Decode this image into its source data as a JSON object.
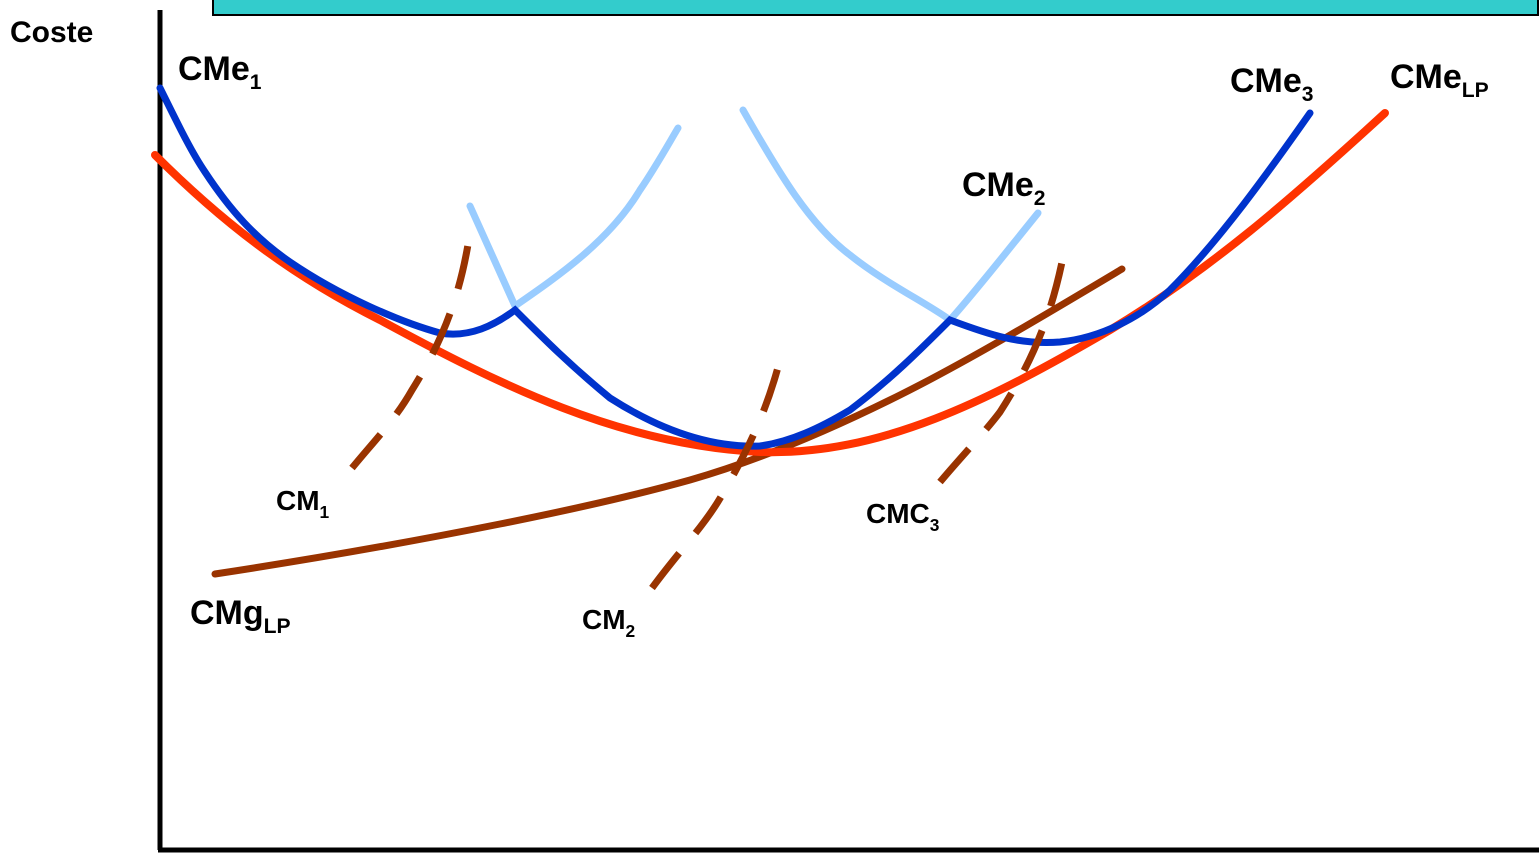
{
  "axis_label": "Coste",
  "colors": {
    "banner": "#33cccc",
    "cme1": "#0033cc",
    "cme2": "#99ccff",
    "cme3": "#0033cc",
    "cmelp": "#ff3300",
    "cmglp": "#993300",
    "cm_dashed": "#993300"
  },
  "labels": {
    "cme1": {
      "main": "CMe",
      "sub": "1"
    },
    "cme2": {
      "main": "CMe",
      "sub": "2"
    },
    "cme3": {
      "main": "CMe",
      "sub": "3"
    },
    "cmelp": {
      "main": "CMe",
      "sub": "LP"
    },
    "cmglp": {
      "main": "CMg",
      "sub": "LP"
    },
    "cm1": {
      "main": "CM",
      "sub": "1"
    },
    "cm2": {
      "main": "CM",
      "sub": "2"
    },
    "cmc3": {
      "main": "CMC",
      "sub": "3"
    }
  }
}
